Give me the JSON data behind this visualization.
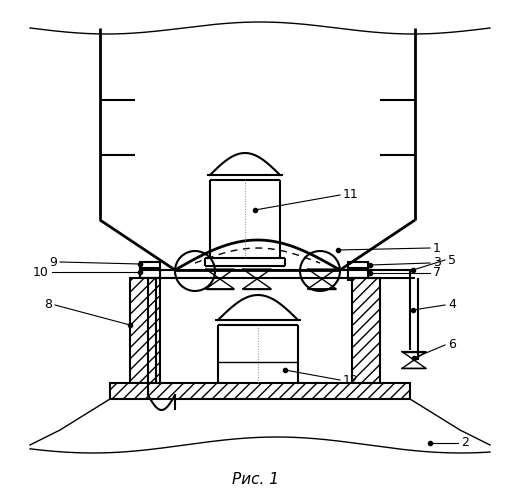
{
  "title": "Рис. 1",
  "bg_color": "#ffffff",
  "line_color": "#000000",
  "fig_w": 5.12,
  "fig_h": 5.0,
  "dpi": 100
}
